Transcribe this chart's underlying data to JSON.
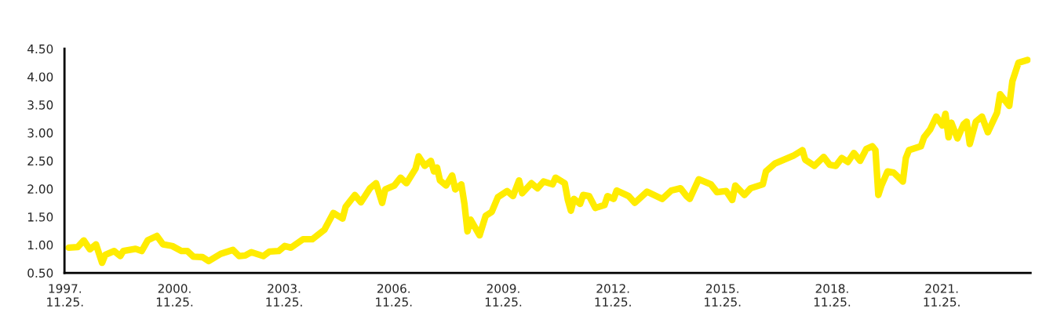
{
  "chart_data": {
    "type": "line",
    "x": [
      "1998-01",
      "1998-04",
      "1998-06",
      "1998-08",
      "1998-10",
      "1998-12",
      "1999-01",
      "1999-04",
      "1999-06",
      "1999-07",
      "1999-11",
      "2000-01",
      "2000-03",
      "2000-06",
      "2000-08",
      "2000-11",
      "2001-02",
      "2001-04",
      "2001-06",
      "2001-09",
      "2001-11",
      "2002-03",
      "2002-07",
      "2002-09",
      "2002-11",
      "2003-01",
      "2003-05",
      "2003-07",
      "2003-10",
      "2003-12",
      "2004-02",
      "2004-06",
      "2004-09",
      "2005-01",
      "2005-04",
      "2005-07",
      "2005-08",
      "2005-11",
      "2006-01",
      "2006-04",
      "2006-06",
      "2006-08",
      "2006-09",
      "2006-12",
      "2007-02",
      "2007-04",
      "2007-07",
      "2007-08",
      "2007-10",
      "2007-12",
      "2008-01",
      "2008-02",
      "2008-03",
      "2008-05",
      "2008-07",
      "2008-08",
      "2008-10",
      "2008-11",
      "2008-12",
      "2009-01",
      "2009-04",
      "2009-06",
      "2009-08",
      "2009-10",
      "2010-01",
      "2010-03",
      "2010-05",
      "2010-06",
      "2010-09",
      "2010-11",
      "2011-01",
      "2011-04",
      "2011-05",
      "2011-08",
      "2011-09",
      "2011-10",
      "2011-11",
      "2012-01",
      "2012-02",
      "2012-04",
      "2012-06",
      "2012-09",
      "2012-10",
      "2012-12",
      "2013-01",
      "2013-05",
      "2013-07",
      "2013-11",
      "2014-04",
      "2014-07",
      "2014-10",
      "2014-12",
      "2015-01",
      "2015-04",
      "2015-08",
      "2015-10",
      "2016-01",
      "2016-03",
      "2016-04",
      "2016-07",
      "2016-09",
      "2017-01",
      "2017-02",
      "2017-05",
      "2017-08",
      "2017-11",
      "2018-02",
      "2018-03",
      "2018-06",
      "2018-09",
      "2018-11",
      "2019-01",
      "2019-03",
      "2019-05",
      "2019-07",
      "2019-09",
      "2019-11",
      "2020-01",
      "2020-02",
      "2020-03",
      "2020-04",
      "2020-06",
      "2020-08",
      "2020-11",
      "2020-12",
      "2021-01",
      "2021-05",
      "2021-06",
      "2021-08",
      "2021-10",
      "2021-12",
      "2022-01",
      "2022-02",
      "2022-03",
      "2022-05",
      "2022-07",
      "2022-08",
      "2022-09",
      "2022-11",
      "2023-01",
      "2023-03",
      "2023-06",
      "2023-07",
      "2023-10",
      "2023-11",
      "2024-01",
      "2024-04"
    ],
    "series": [
      {
        "color": "#ffec00",
        "values": [
          0.95,
          0.96,
          1.08,
          0.92,
          1.01,
          0.68,
          0.82,
          0.89,
          0.8,
          0.89,
          0.93,
          0.89,
          1.08,
          1.16,
          1.01,
          0.98,
          0.89,
          0.89,
          0.79,
          0.78,
          0.71,
          0.84,
          0.91,
          0.8,
          0.81,
          0.87,
          0.8,
          0.88,
          0.89,
          0.98,
          0.95,
          1.1,
          1.1,
          1.27,
          1.57,
          1.47,
          1.68,
          1.89,
          1.76,
          2.01,
          2.1,
          1.75,
          1.99,
          2.06,
          2.2,
          2.1,
          2.36,
          2.58,
          2.41,
          2.5,
          2.31,
          2.38,
          2.15,
          2.06,
          2.24,
          1.99,
          2.08,
          1.73,
          1.24,
          1.45,
          1.17,
          1.52,
          1.59,
          1.85,
          1.96,
          1.87,
          2.15,
          1.92,
          2.1,
          2.01,
          2.13,
          2.08,
          2.2,
          2.1,
          1.8,
          1.61,
          1.82,
          1.73,
          1.89,
          1.87,
          1.66,
          1.71,
          1.87,
          1.82,
          1.97,
          1.87,
          1.75,
          1.95,
          1.82,
          1.97,
          2.01,
          1.87,
          1.82,
          2.17,
          2.08,
          1.94,
          1.96,
          1.8,
          2.06,
          1.89,
          2.01,
          2.08,
          2.31,
          2.45,
          2.52,
          2.59,
          2.69,
          2.52,
          2.41,
          2.57,
          2.43,
          2.41,
          2.55,
          2.48,
          2.64,
          2.5,
          2.71,
          2.76,
          2.69,
          1.89,
          2.06,
          2.31,
          2.29,
          2.13,
          2.55,
          2.69,
          2.76,
          2.92,
          3.06,
          3.29,
          3.13,
          3.34,
          2.92,
          3.18,
          2.9,
          3.15,
          3.2,
          2.8,
          3.2,
          3.29,
          3.01,
          3.36,
          3.69,
          3.48,
          3.92,
          4.25,
          4.3
        ]
      }
    ],
    "xlim": [
      "1997-11-20",
      "2024-05-01"
    ],
    "xticks": [
      {
        "value": "1997-11-25",
        "label": "1997.\n11.25."
      },
      {
        "value": "2000-11-25",
        "label": "2000.\n11.25."
      },
      {
        "value": "2003-11-25",
        "label": "2003.\n11.25."
      },
      {
        "value": "2006-11-25",
        "label": "2006.\n11.25."
      },
      {
        "value": "2009-11-25",
        "label": "2009.\n11.25."
      },
      {
        "value": "2012-11-25",
        "label": "2012.\n11.25."
      },
      {
        "value": "2015-11-25",
        "label": "2015.\n11.25."
      },
      {
        "value": "2018-11-25",
        "label": "2018.\n11.25."
      },
      {
        "value": "2021-11-25",
        "label": "2021.\n11.25."
      }
    ],
    "ylim": [
      0.5,
      4.5
    ],
    "yticks": [
      {
        "value": 0.5,
        "label": "0.50"
      },
      {
        "value": 1.0,
        "label": "1.00"
      },
      {
        "value": 1.5,
        "label": "1.50"
      },
      {
        "value": 2.0,
        "label": "2.00"
      },
      {
        "value": 2.5,
        "label": "2.50"
      },
      {
        "value": 3.0,
        "label": "3.00"
      },
      {
        "value": 3.5,
        "label": "3.50"
      },
      {
        "value": 4.0,
        "label": "4.00"
      },
      {
        "value": 4.5,
        "label": "4.50"
      }
    ],
    "marker": "none",
    "line_style": "solid"
  }
}
